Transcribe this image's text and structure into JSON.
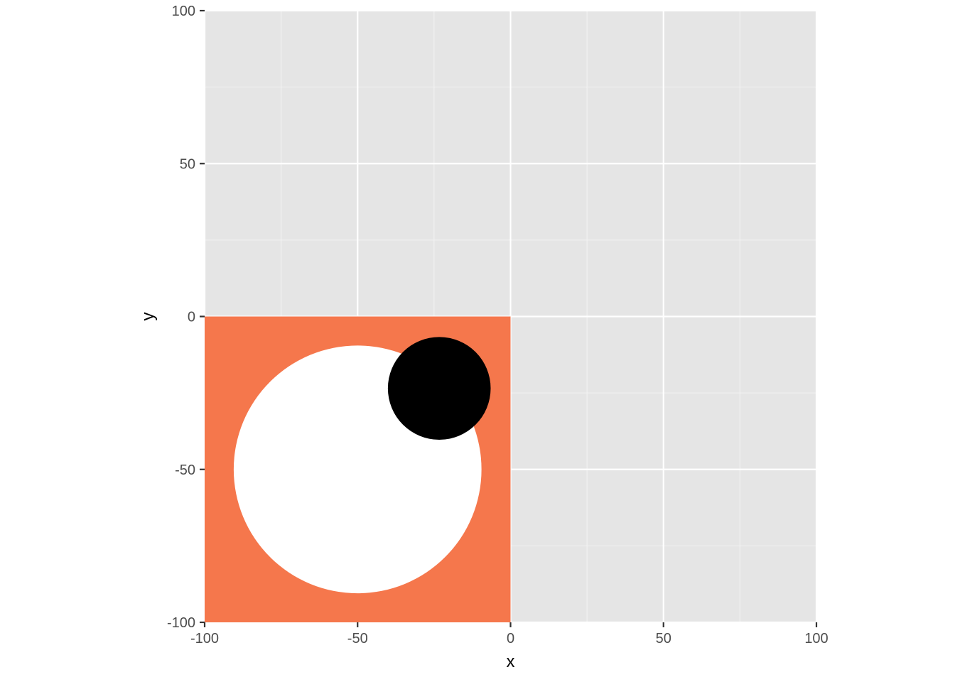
{
  "chart_data": {
    "type": "scatter",
    "title": "",
    "xlabel": "x",
    "ylabel": "y",
    "xlim": [
      -100,
      100
    ],
    "ylim": [
      -100,
      100
    ],
    "x_ticks": [
      -100,
      -50,
      0,
      50,
      100
    ],
    "y_ticks": [
      -100,
      -50,
      0,
      50,
      100
    ],
    "x_tick_labels": [
      "-100",
      "-50",
      "0",
      "50",
      "100"
    ],
    "y_tick_labels": [
      "-100",
      "-50",
      "0",
      "50",
      "100"
    ],
    "grid": true,
    "legend": "none",
    "panel_background": "#e5e5e5",
    "rectangle": {
      "xmin": -100,
      "xmax": 0,
      "ymin": -100,
      "ymax": 0,
      "color": "#f5774c"
    },
    "circles": [
      {
        "x": -50,
        "y": -50,
        "r": 40.5,
        "color": "#ffffff"
      },
      {
        "x": -23.3,
        "y": -23.5,
        "r": 16.8,
        "color": "#000000"
      }
    ]
  }
}
